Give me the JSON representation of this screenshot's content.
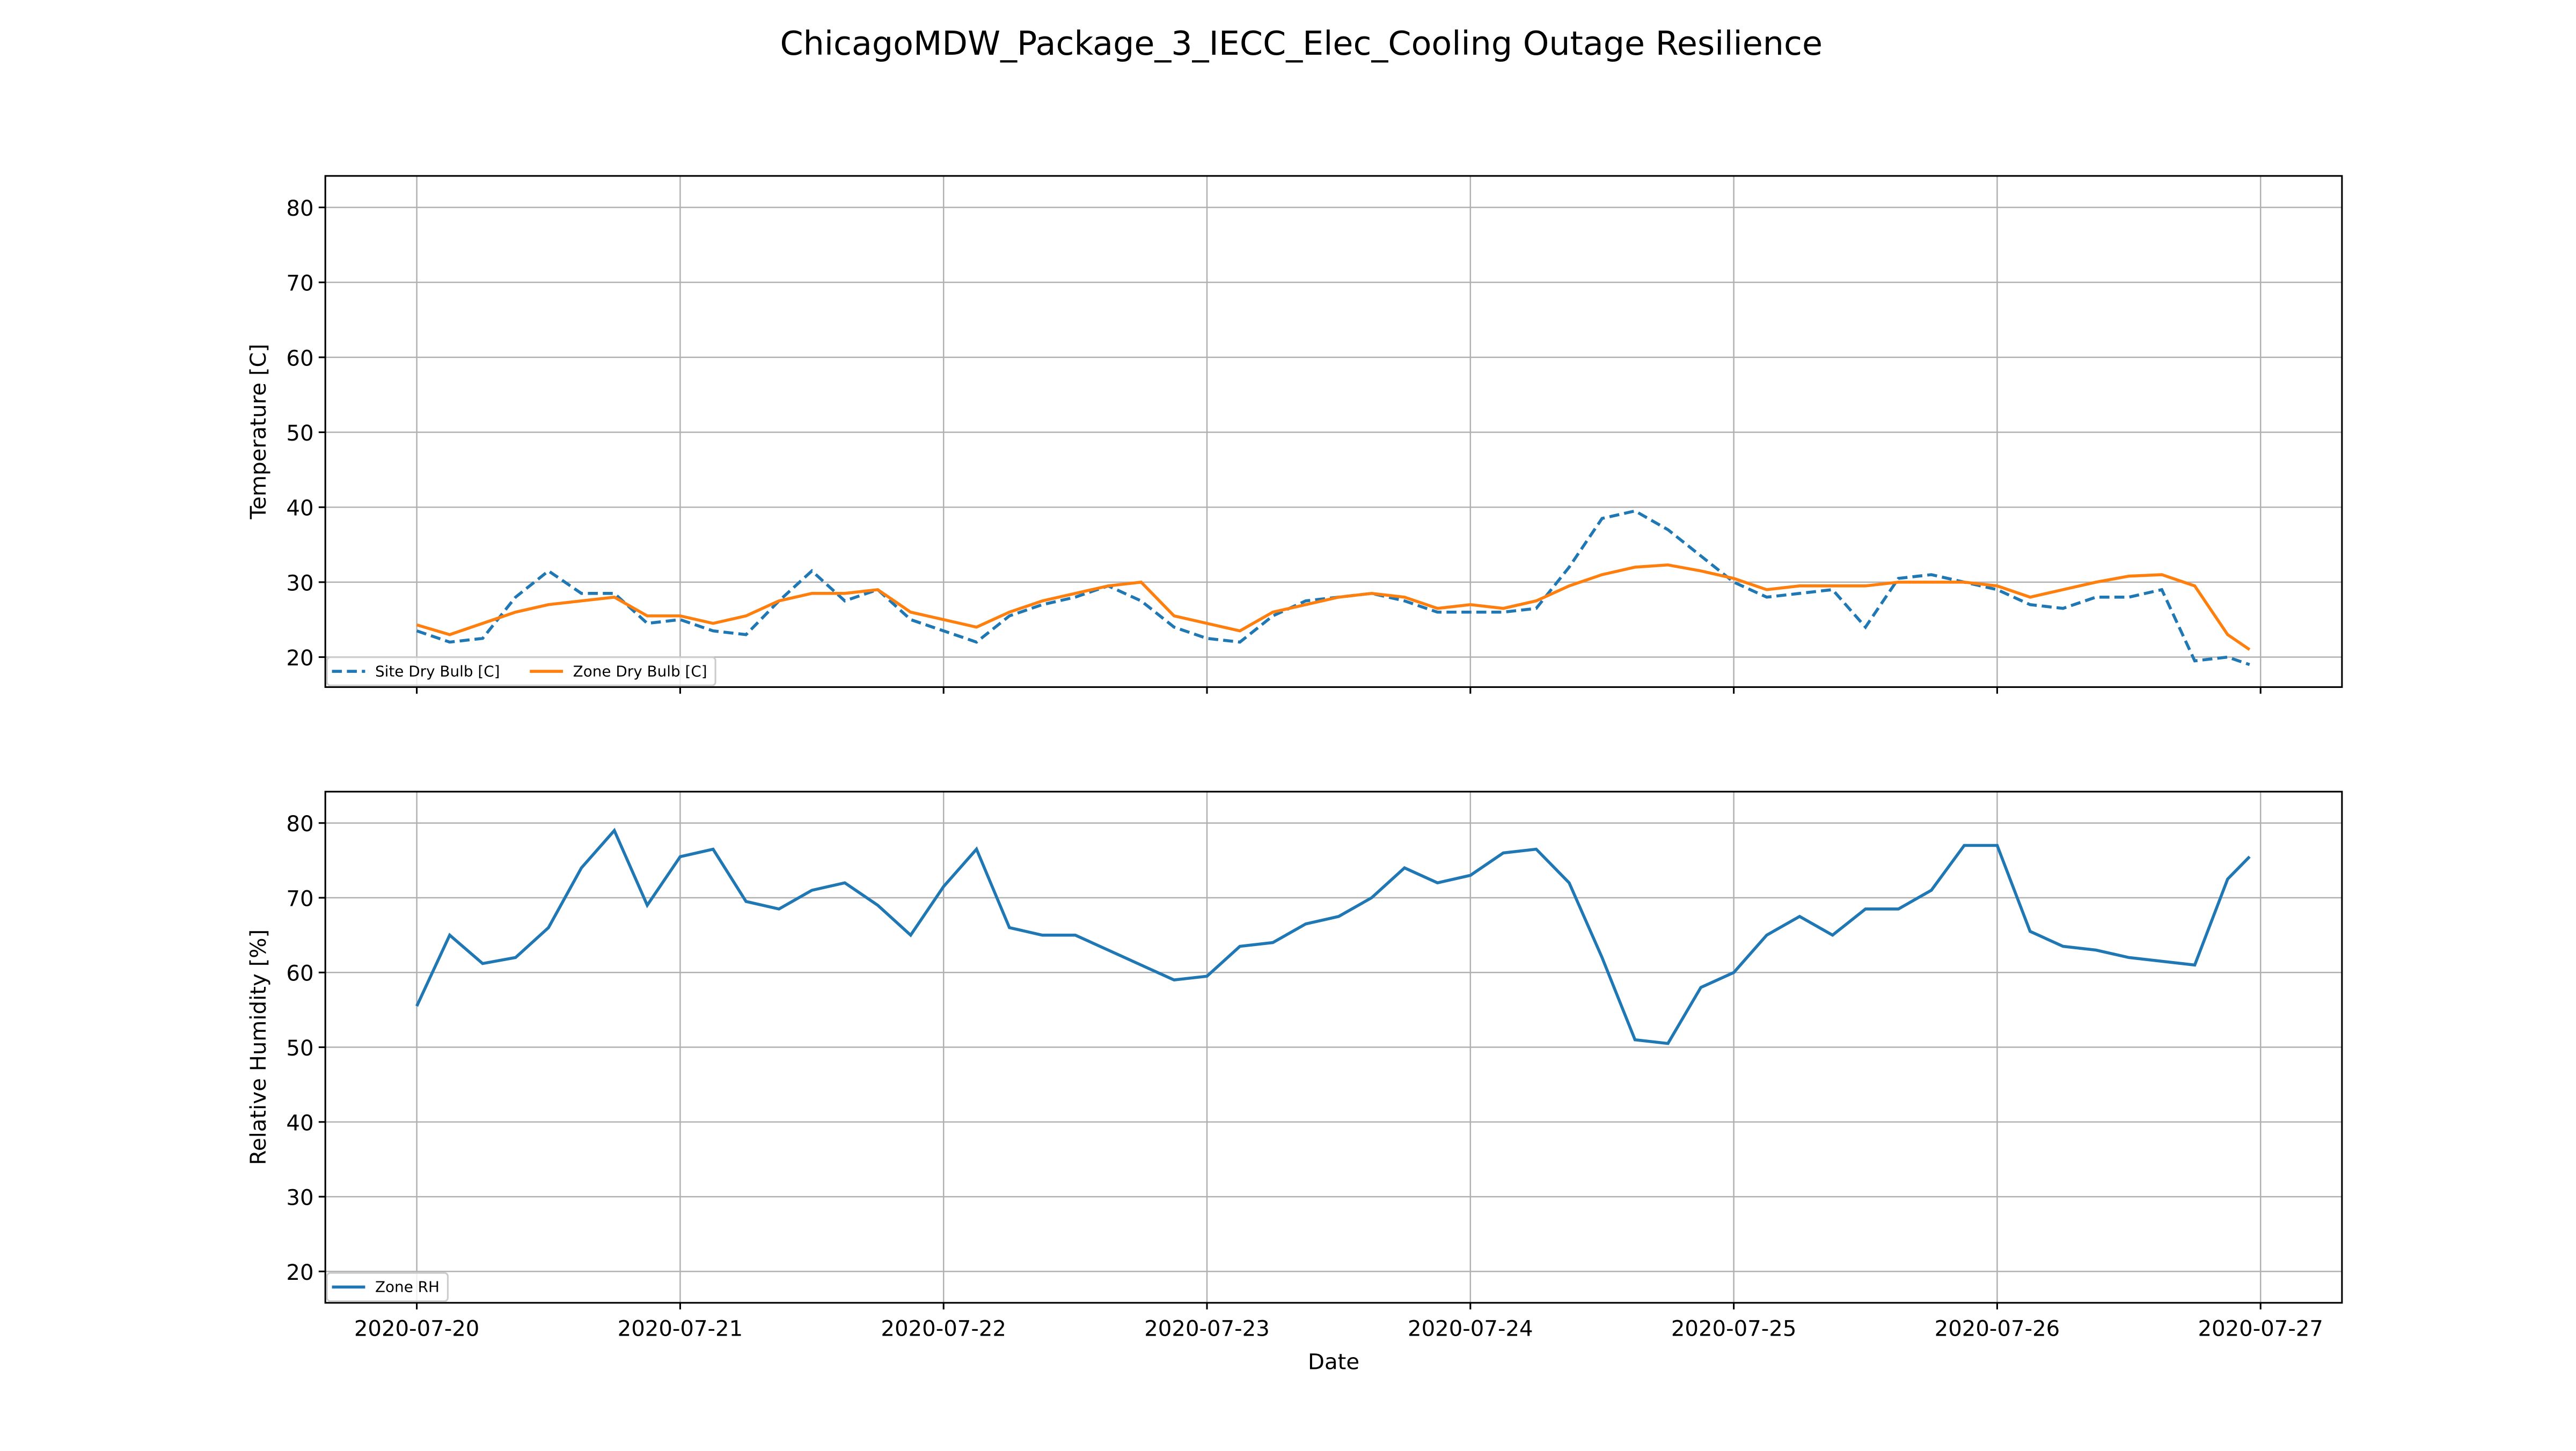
{
  "title": "ChicagoMDW_Package_3_IECC_Elec_Cooling Outage Resilience",
  "chart_data": [
    {
      "type": "line",
      "y_label": "Temperature [C]",
      "ylim": [
        16,
        84.2
      ],
      "yticks": [
        20,
        30,
        40,
        50,
        60,
        70,
        80
      ],
      "grid": true,
      "legend": "lower left",
      "xlim": [
        "2020-07-19 15:40",
        "2020-07-27 07:25"
      ],
      "xticks": [
        "2020-07-20",
        "2020-07-21",
        "2020-07-22",
        "2020-07-23",
        "2020-07-24",
        "2020-07-25",
        "2020-07-26",
        "2020-07-27"
      ],
      "show_xtick_labels": false,
      "x": [
        "2020-07-20 00:00",
        "2020-07-20 03:00",
        "2020-07-20 06:00",
        "2020-07-20 09:00",
        "2020-07-20 12:00",
        "2020-07-20 15:00",
        "2020-07-20 18:00",
        "2020-07-20 21:00",
        "2020-07-21 00:00",
        "2020-07-21 03:00",
        "2020-07-21 06:00",
        "2020-07-21 09:00",
        "2020-07-21 12:00",
        "2020-07-21 15:00",
        "2020-07-21 18:00",
        "2020-07-21 21:00",
        "2020-07-22 00:00",
        "2020-07-22 03:00",
        "2020-07-22 06:00",
        "2020-07-22 09:00",
        "2020-07-22 12:00",
        "2020-07-22 15:00",
        "2020-07-22 18:00",
        "2020-07-22 21:00",
        "2020-07-23 00:00",
        "2020-07-23 03:00",
        "2020-07-23 06:00",
        "2020-07-23 09:00",
        "2020-07-23 12:00",
        "2020-07-23 15:00",
        "2020-07-23 18:00",
        "2020-07-23 21:00",
        "2020-07-24 00:00",
        "2020-07-24 03:00",
        "2020-07-24 06:00",
        "2020-07-24 09:00",
        "2020-07-24 12:00",
        "2020-07-24 15:00",
        "2020-07-24 18:00",
        "2020-07-24 21:00",
        "2020-07-25 00:00",
        "2020-07-25 03:00",
        "2020-07-25 06:00",
        "2020-07-25 09:00",
        "2020-07-25 12:00",
        "2020-07-25 15:00",
        "2020-07-25 18:00",
        "2020-07-25 21:00",
        "2020-07-26 00:00",
        "2020-07-26 03:00",
        "2020-07-26 06:00",
        "2020-07-26 09:00",
        "2020-07-26 12:00",
        "2020-07-26 15:00",
        "2020-07-26 18:00",
        "2020-07-26 21:00",
        "2020-07-26 23:00"
      ],
      "series": [
        {
          "name": "Site Dry Bulb [C]",
          "color": "#1f77b4",
          "dash": true,
          "values": [
            23.5,
            22,
            22.5,
            28,
            31.5,
            28.5,
            28.5,
            24.5,
            25,
            23.5,
            23,
            27.5,
            31.5,
            27.5,
            29,
            25,
            23.5,
            22,
            25.5,
            27,
            28,
            29.5,
            27.5,
            24,
            22.5,
            22,
            25.5,
            27.5,
            28,
            28.5,
            27.5,
            26,
            26,
            26,
            26.5,
            32,
            38.5,
            39.5,
            37,
            33.5,
            30,
            28,
            28.5,
            29,
            24,
            30.5,
            31,
            30,
            29,
            27,
            26.5,
            28,
            28,
            29,
            19.5,
            20,
            19
          ]
        },
        {
          "name": "Zone Dry Bulb [C]",
          "color": "#ff7f0e",
          "dash": false,
          "values": [
            24.3,
            23,
            24.5,
            26,
            27,
            27.5,
            28,
            25.5,
            25.5,
            24.5,
            25.5,
            27.5,
            28.5,
            28.5,
            29,
            26,
            25,
            24,
            26,
            27.5,
            28.5,
            29.5,
            30,
            25.5,
            24.5,
            23.5,
            26,
            27,
            28,
            28.5,
            28,
            26.5,
            27,
            26.5,
            27.5,
            29.5,
            31,
            32,
            32.3,
            31.5,
            30.5,
            29,
            29.5,
            29.5,
            29.5,
            30,
            30,
            30,
            29.5,
            28,
            29,
            30,
            30.8,
            31,
            29.5,
            23,
            21
          ]
        }
      ]
    },
    {
      "type": "line",
      "y_label": "Relative Humidity [%]",
      "x_label": "Date",
      "ylim": [
        15.8,
        84.2
      ],
      "yticks": [
        20,
        30,
        40,
        50,
        60,
        70,
        80
      ],
      "grid": true,
      "legend": "lower left",
      "xlim": [
        "2020-07-19 15:40",
        "2020-07-27 07:25"
      ],
      "xticks": [
        "2020-07-20",
        "2020-07-21",
        "2020-07-22",
        "2020-07-23",
        "2020-07-24",
        "2020-07-25",
        "2020-07-26",
        "2020-07-27"
      ],
      "show_xtick_labels": true,
      "x": [
        "2020-07-20 00:00",
        "2020-07-20 03:00",
        "2020-07-20 06:00",
        "2020-07-20 09:00",
        "2020-07-20 12:00",
        "2020-07-20 15:00",
        "2020-07-20 18:00",
        "2020-07-20 21:00",
        "2020-07-21 00:00",
        "2020-07-21 03:00",
        "2020-07-21 06:00",
        "2020-07-21 09:00",
        "2020-07-21 12:00",
        "2020-07-21 15:00",
        "2020-07-21 18:00",
        "2020-07-21 21:00",
        "2020-07-22 00:00",
        "2020-07-22 03:00",
        "2020-07-22 06:00",
        "2020-07-22 09:00",
        "2020-07-22 12:00",
        "2020-07-22 15:00",
        "2020-07-22 18:00",
        "2020-07-22 21:00",
        "2020-07-23 00:00",
        "2020-07-23 03:00",
        "2020-07-23 06:00",
        "2020-07-23 09:00",
        "2020-07-23 12:00",
        "2020-07-23 15:00",
        "2020-07-23 18:00",
        "2020-07-23 21:00",
        "2020-07-24 00:00",
        "2020-07-24 03:00",
        "2020-07-24 06:00",
        "2020-07-24 09:00",
        "2020-07-24 12:00",
        "2020-07-24 15:00",
        "2020-07-24 18:00",
        "2020-07-24 21:00",
        "2020-07-25 00:00",
        "2020-07-25 03:00",
        "2020-07-25 06:00",
        "2020-07-25 09:00",
        "2020-07-25 12:00",
        "2020-07-25 15:00",
        "2020-07-25 18:00",
        "2020-07-25 21:00",
        "2020-07-26 00:00",
        "2020-07-26 03:00",
        "2020-07-26 06:00",
        "2020-07-26 09:00",
        "2020-07-26 12:00",
        "2020-07-26 15:00",
        "2020-07-26 18:00",
        "2020-07-26 21:00",
        "2020-07-26 23:00"
      ],
      "series": [
        {
          "name": "Zone RH",
          "color": "#1f77b4",
          "dash": false,
          "values": [
            55.5,
            65,
            61.2,
            62,
            66,
            74,
            79,
            69,
            75.5,
            76.5,
            69.5,
            68.5,
            71,
            72,
            69,
            65,
            71.5,
            76.5,
            66,
            65,
            65,
            63,
            61,
            59,
            59.5,
            63.5,
            64,
            66.5,
            67.5,
            70,
            74,
            72,
            73,
            76,
            76.5,
            72,
            62,
            51,
            50.5,
            58,
            60,
            65,
            67.5,
            65,
            68.5,
            68.5,
            71,
            77,
            77,
            65.5,
            63.5,
            63,
            62,
            61.5,
            61,
            72.5,
            75.5
          ]
        }
      ]
    }
  ]
}
